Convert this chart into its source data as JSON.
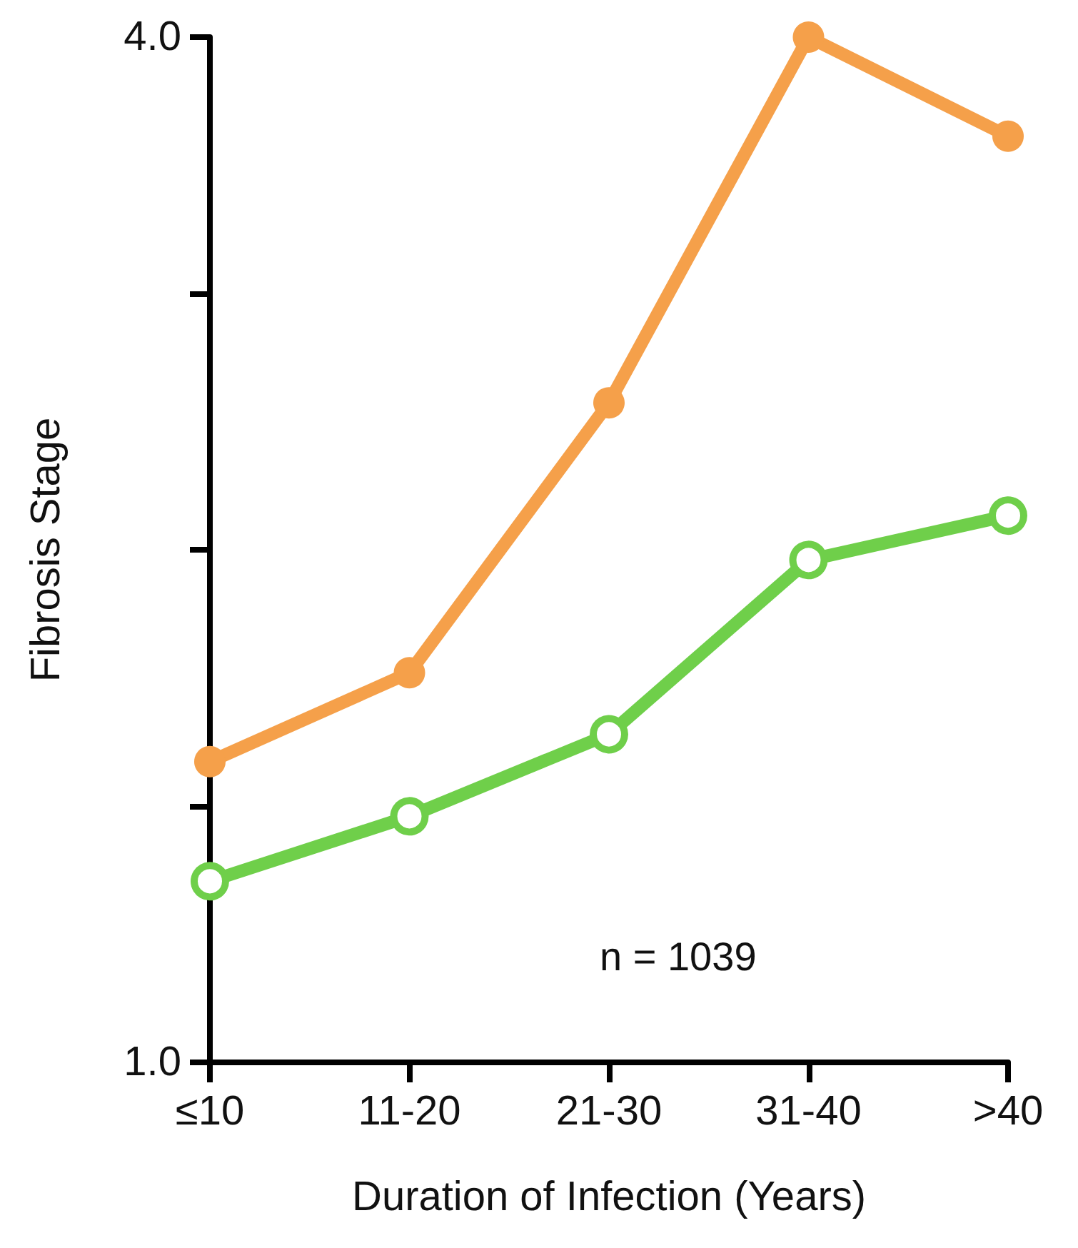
{
  "chart_data": {
    "type": "line",
    "xlabel": "Duration of Infection (Years)",
    "ylabel": "Fibrosis Stage",
    "categories": [
      "≤10",
      "11-20",
      "21-30",
      "31-40",
      ">40"
    ],
    "series": [
      {
        "color": "#f5a04a",
        "values": [
          1.88,
          2.14,
          2.93,
          4.0,
          3.71
        ]
      },
      {
        "color": "#6fcf4a",
        "values": [
          1.53,
          1.72,
          1.96,
          2.47,
          2.6
        ]
      }
    ],
    "ylim": [
      1.0,
      4.0
    ],
    "yticks": [
      {
        "value": 1.0,
        "label": "1.0"
      },
      {
        "value": 1.75,
        "label": null
      },
      {
        "value": 2.5,
        "label": null
      },
      {
        "value": 3.25,
        "label": null
      },
      {
        "value": 4.0,
        "label": "4.0"
      }
    ],
    "grid": false,
    "marker": "circle",
    "line_style": "solid",
    "annotations": [
      "n = 1039"
    ]
  }
}
